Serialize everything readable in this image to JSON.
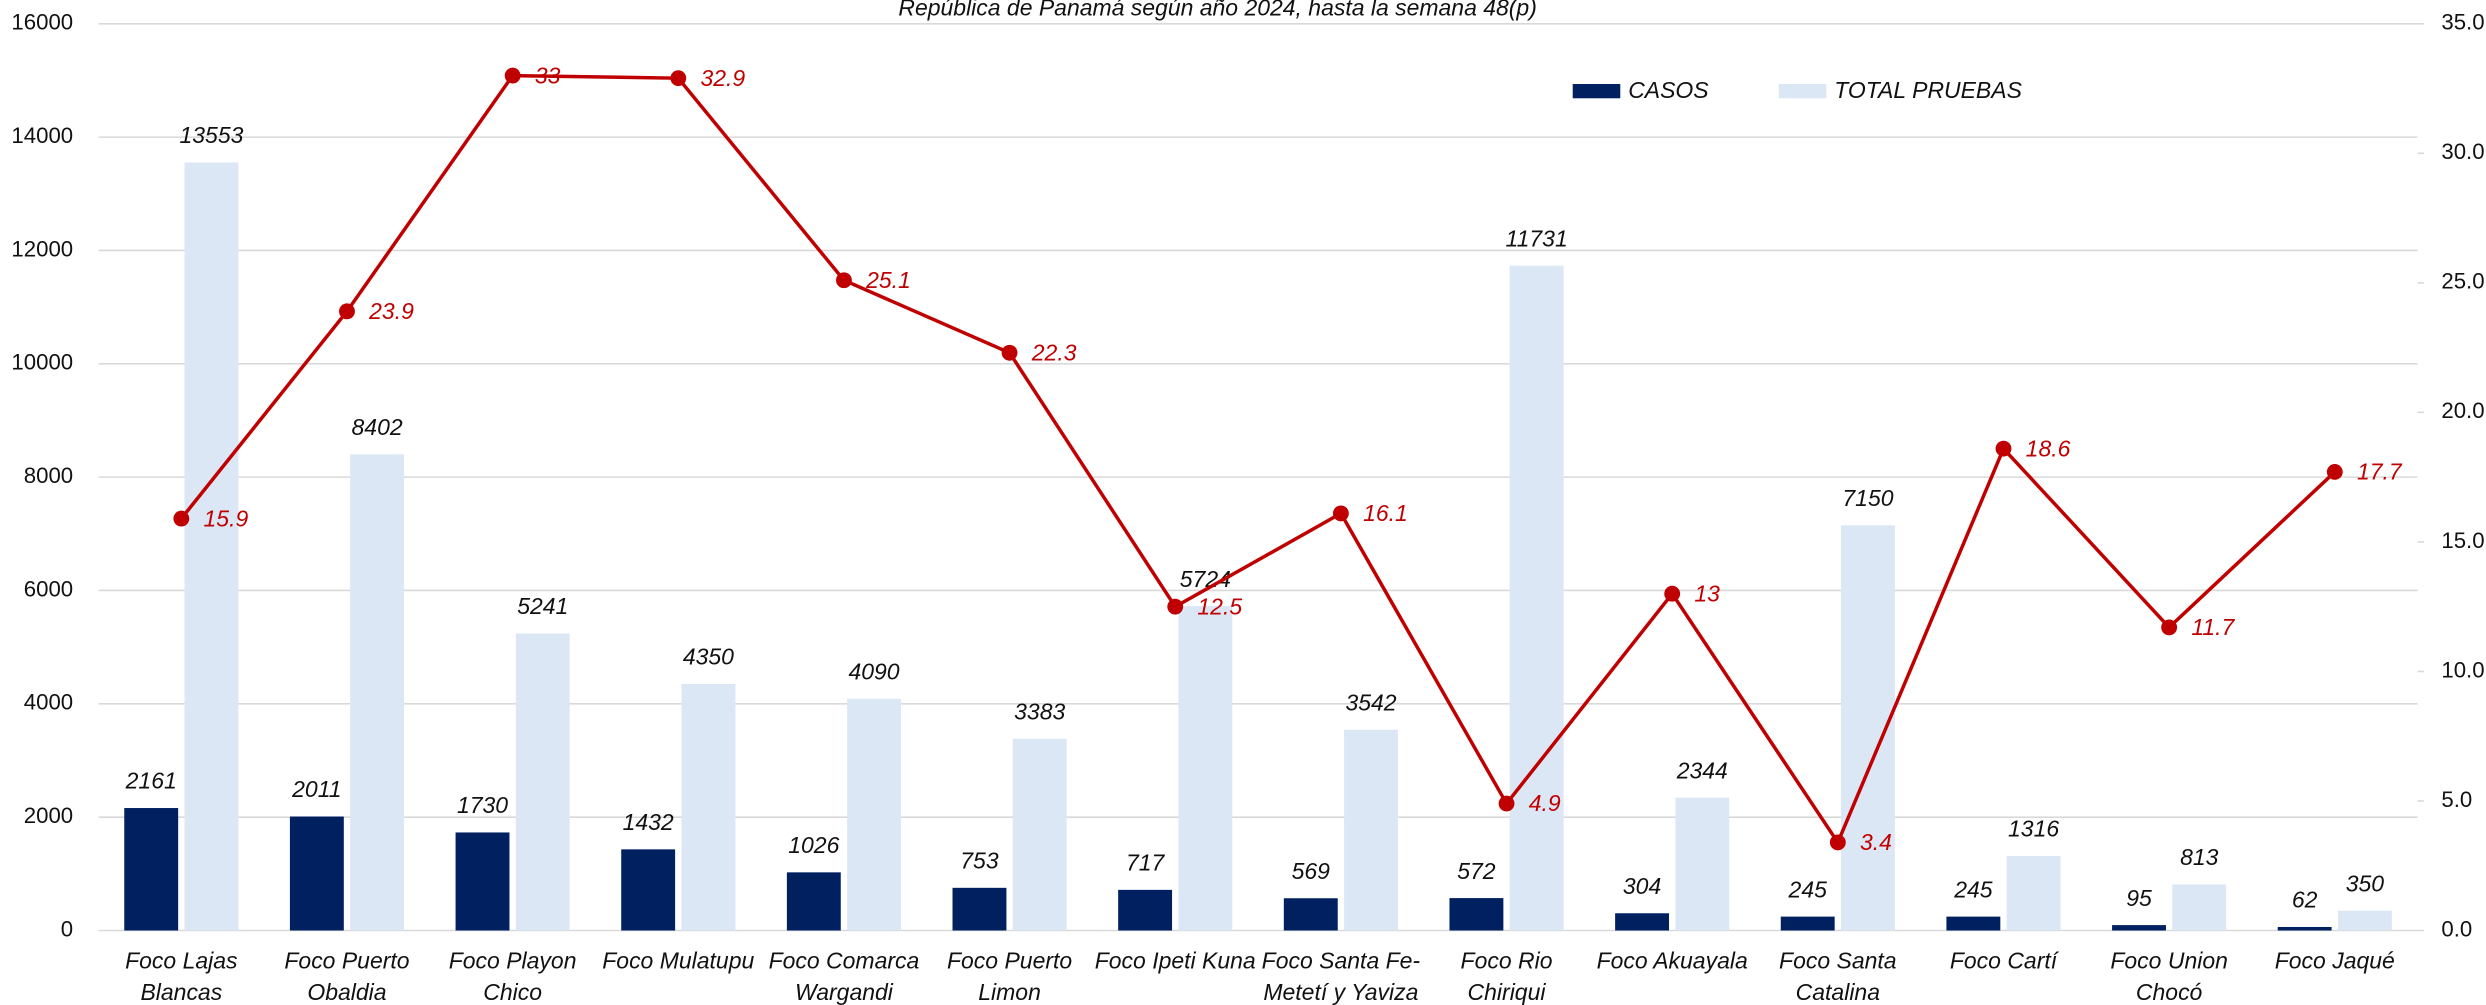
{
  "chart_data": {
    "type": "bar",
    "title": "República de Panamá según año 2024, hasta la semana 48(p)",
    "categories": [
      "Foco Lajas Blancas",
      "Foco Puerto Obaldia",
      "Foco Playon Chico",
      "Foco Mulatupu",
      "Foco Comarca Wargandi",
      "Foco Puerto Limon",
      "Foco Ipeti Kuna",
      "Foco Santa Fe-Metetí y Yaviza",
      "Foco Rio Chiriqui",
      "Foco Akuayala",
      "Foco Santa Catalina",
      "Foco Cartí",
      "Foco Union Chocó",
      "Foco Jaqué"
    ],
    "series": [
      {
        "name": "CASOS",
        "color": "#002060",
        "values": [
          2161,
          2011,
          1730,
          1432,
          1026,
          753,
          717,
          569,
          572,
          304,
          245,
          245,
          95,
          62
        ]
      },
      {
        "name": "TOTAL PRUEBAS",
        "color": "#dce7f5",
        "values": [
          13553,
          8402,
          5241,
          4350,
          4090,
          3383,
          5724,
          3542,
          11731,
          2344,
          7150,
          1316,
          813,
          350
        ]
      },
      {
        "type": "line",
        "axis": "y2",
        "color": "#c00000",
        "values": [
          15.9,
          23.9,
          33.0,
          32.9,
          25.1,
          22.3,
          12.5,
          16.1,
          4.9,
          13.0,
          3.4,
          18.6,
          11.7,
          17.7
        ]
      }
    ],
    "ylim": [
      0,
      16000
    ],
    "yticks": [
      0,
      2000,
      4000,
      6000,
      8000,
      10000,
      12000,
      14000,
      16000
    ],
    "y2lim": [
      0,
      35
    ],
    "y2ticks": [
      {
        "value": 0,
        "label": "0.0"
      },
      {
        "value": 5,
        "label": "5.0"
      },
      {
        "value": 10,
        "label": "10.0"
      },
      {
        "value": 15,
        "label": "15.0"
      },
      {
        "value": 20,
        "label": "20.0"
      },
      {
        "value": 25,
        "label": "25.0"
      },
      {
        "value": 30,
        "label": "30.0"
      },
      {
        "value": 35,
        "label": "35.0"
      }
    ],
    "grid": true,
    "legend": "top-right"
  }
}
